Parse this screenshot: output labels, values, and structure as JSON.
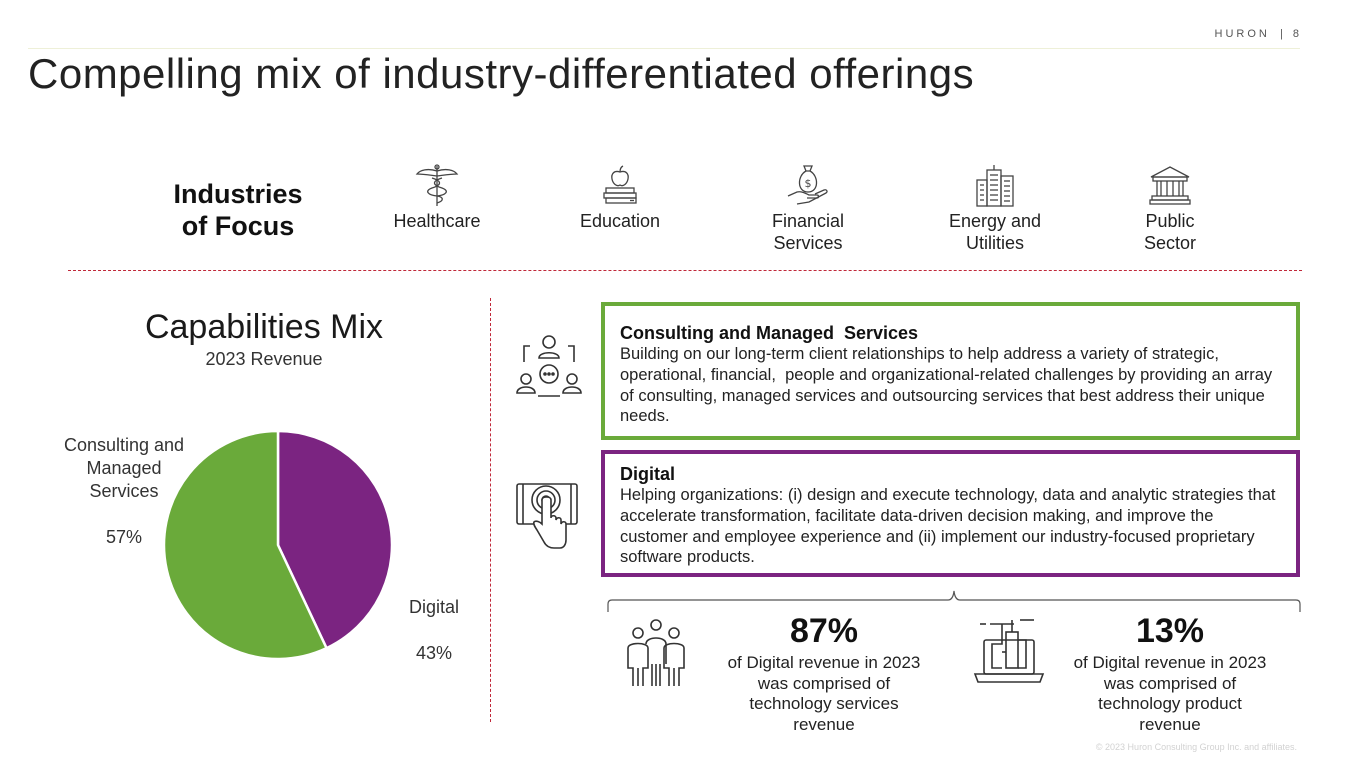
{
  "header": {
    "brand": "HURON",
    "separator": "|",
    "page_number": "8"
  },
  "title": "Compelling mix of industry-differentiated offerings",
  "industries": {
    "heading": "Industries\nof Focus",
    "items": [
      {
        "label": "Healthcare",
        "icon": "caduceus-icon"
      },
      {
        "label": "Education",
        "icon": "books-apple-icon"
      },
      {
        "label": "Financial\nServices",
        "icon": "money-bag-hand-icon"
      },
      {
        "label": "Energy and\nUtilities",
        "icon": "city-buildings-icon"
      },
      {
        "label": "Public\nSector",
        "icon": "government-building-icon"
      }
    ]
  },
  "capabilities": {
    "title": "Capabilities Mix",
    "subtitle": "2023 Revenue"
  },
  "chart_data": {
    "type": "pie",
    "title": "Capabilities Mix",
    "subtitle": "2023 Revenue",
    "slices": [
      {
        "name": "Digital",
        "label": "Digital",
        "value": 43,
        "value_label": "43%",
        "color": "#7b2481"
      },
      {
        "name": "Consulting and Managed Services",
        "label": "Consulting and\nManaged\nServices",
        "value": 57,
        "value_label": "57%",
        "color": "#6aaa3a"
      }
    ]
  },
  "services": [
    {
      "title": "Consulting and Managed  Services",
      "description": "Building on our long-term client relationships to help address a variety of strategic, operational, financial,  people and organizational-related challenges by providing an array of consulting, managed services and outsourcing services that best address their unique needs.",
      "color": "#6aaa3a",
      "icon": "team-meeting-icon"
    },
    {
      "title": "Digital",
      "description": "Helping organizations: (i) design and execute technology, data and analytic strategies that accelerate transformation, facilitate data-driven decision making, and improve the customer and employee experience and (ii) implement our industry-focused proprietary software products.",
      "color": "#7b2481",
      "icon": "touch-screen-icon"
    }
  ],
  "stats": [
    {
      "percent": "87%",
      "text": "of Digital revenue in 2023\nwas comprised of\ntechnology services\nrevenue",
      "icon": "people-group-icon"
    },
    {
      "percent": "13%",
      "text": "of Digital revenue in 2023\nwas comprised of\ntechnology product\nrevenue",
      "icon": "laptop-tech-icon"
    }
  ],
  "copyright": "© 2023 Huron Consulting Group Inc. and affiliates."
}
